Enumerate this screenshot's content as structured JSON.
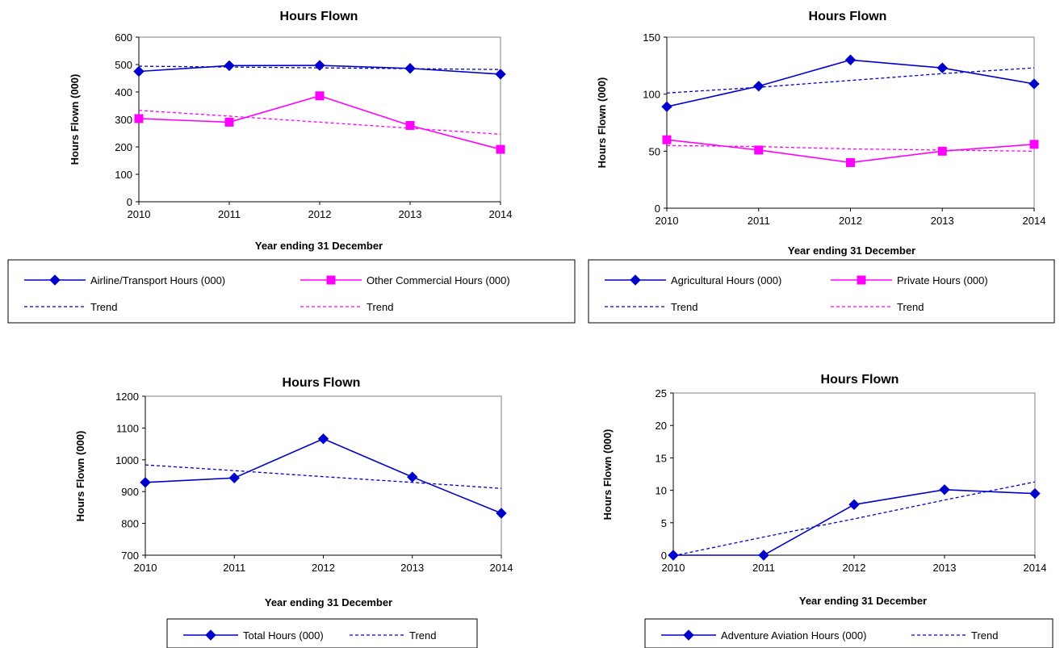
{
  "chart_data": [
    {
      "type": "line",
      "title": "Hours Flown",
      "xlabel": "Year ending 31 December",
      "ylabel": "Hours Flown (000)",
      "categories": [
        "2010",
        "2011",
        "2012",
        "2013",
        "2014"
      ],
      "ylim": [
        0,
        600
      ],
      "yticks": [
        0,
        100,
        200,
        300,
        400,
        500,
        600
      ],
      "legend_position": "bottom",
      "series": [
        {
          "name": "Airline/Transport Hours (000)",
          "values": [
            475,
            496,
            497,
            486,
            465
          ],
          "color": "#0000CC",
          "marker": "diamond"
        },
        {
          "name": "Other Commercial Hours (000)",
          "values": [
            303,
            290,
            386,
            278,
            191
          ],
          "color": "#FF00FF",
          "marker": "square"
        }
      ],
      "trends": [
        {
          "name": "Trend",
          "values": [
            494,
            491,
            488,
            485,
            482
          ],
          "color": "#0000CC"
        },
        {
          "name": "Trend",
          "values": [
            333,
            312,
            290,
            268,
            246
          ],
          "color": "#FF00FF"
        }
      ]
    },
    {
      "type": "line",
      "title": "Hours Flown",
      "xlabel": "Year ending 31 December",
      "ylabel": "Hours Flown (000)",
      "categories": [
        "2010",
        "2011",
        "2012",
        "2013",
        "2014"
      ],
      "ylim": [
        0,
        150
      ],
      "yticks": [
        0,
        50,
        100,
        150
      ],
      "legend_position": "bottom",
      "series": [
        {
          "name": "Agricultural Hours (000)",
          "values": [
            89,
            107,
            130,
            123,
            109
          ],
          "color": "#0000CC",
          "marker": "diamond"
        },
        {
          "name": "Private Hours (000)",
          "values": [
            60,
            51,
            40,
            50,
            56
          ],
          "color": "#FF00FF",
          "marker": "square"
        }
      ],
      "trends": [
        {
          "name": "Trend",
          "values": [
            101,
            106,
            112,
            118,
            123
          ],
          "color": "#0000CC"
        },
        {
          "name": "Trend",
          "values": [
            55,
            54,
            52,
            51,
            50
          ],
          "color": "#FF00FF"
        }
      ]
    },
    {
      "type": "line",
      "title": "Hours Flown",
      "xlabel": "Year ending 31 December",
      "ylabel": "Hours Flown (000)",
      "categories": [
        "2010",
        "2011",
        "2012",
        "2013",
        "2014"
      ],
      "ylim": [
        700,
        1200
      ],
      "yticks": [
        700,
        800,
        900,
        1000,
        1100,
        1200
      ],
      "legend_position": "bottom",
      "series": [
        {
          "name": "Total Hours (000)",
          "values": [
            929,
            943,
            1066,
            946,
            832
          ],
          "color": "#0000CC",
          "marker": "diamond"
        }
      ],
      "trends": [
        {
          "name": "Trend",
          "values": [
            984,
            966,
            947,
            929,
            910
          ],
          "color": "#0000CC"
        }
      ]
    },
    {
      "type": "line",
      "title": "Hours Flown",
      "xlabel": "Year ending 31 December",
      "ylabel": "Hours Flown (000)",
      "categories": [
        "2010",
        "2011",
        "2012",
        "2013",
        "2014"
      ],
      "ylim": [
        0,
        25
      ],
      "yticks": [
        0,
        5,
        10,
        15,
        20,
        25
      ],
      "legend_position": "bottom",
      "series": [
        {
          "name": "Adventure Aviation Hours (000)",
          "values": [
            0,
            0,
            7.8,
            10.1,
            9.5
          ],
          "color": "#0000CC",
          "marker": "diamond"
        }
      ],
      "trends": [
        {
          "name": "Trend",
          "values": [
            -0.1,
            2.8,
            5.6,
            8.5,
            11.3
          ],
          "color": "#0000CC"
        }
      ]
    }
  ]
}
